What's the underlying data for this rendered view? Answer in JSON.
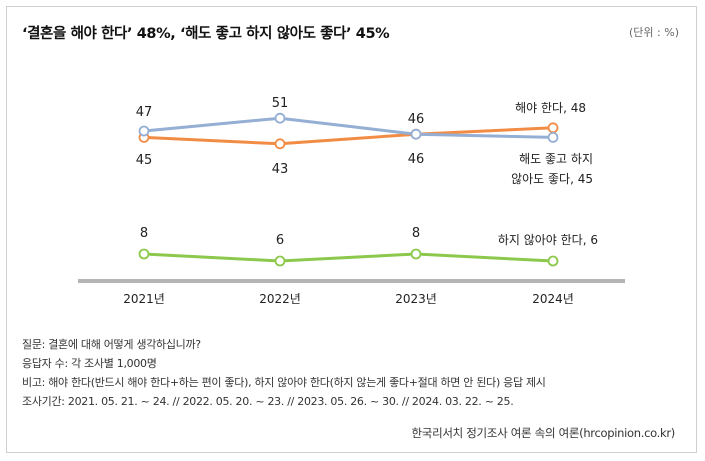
{
  "header": {
    "title": "‘결혼을 해야 한다’ 48%, ‘해도 좋고 하지 않아도 좋다’ 45%",
    "unit": "(단위 : %)"
  },
  "chart_data": {
    "type": "line",
    "x": [
      "2021년",
      "2022년",
      "2023년",
      "2024년"
    ],
    "ylim": [
      0,
      60
    ],
    "grid": false,
    "series": [
      {
        "name": "해야 한다, 48",
        "color": "#f28c45",
        "values": [
          45,
          43,
          46,
          48
        ]
      },
      {
        "name": "해도 좋고 하지 않아도 좋다, 45",
        "color": "#94aed4",
        "values": [
          47,
          51,
          46,
          45
        ]
      },
      {
        "name": "하지 않아야 한다, 6",
        "color": "#8cc84b",
        "values": [
          8,
          6,
          8,
          6
        ]
      }
    ]
  },
  "legend": {
    "label1": "해야 한다, 48",
    "label2_line1": "해도 좋고 하지",
    "label2_line2": "않아도 좋다, 45",
    "label3": "하지 않아야 한다, 6"
  },
  "notes": [
    "질문: 결혼에 대해 어떻게 생각하십니까?",
    "응답자 수: 각 조사별 1,000명",
    "비고: 해야 한다(반드시 해야 한다+하는 편이 좋다), 하지 않아야 한다(하지 않는게 좋다+절대 하면 안 된다) 응답 제시",
    "조사기간: 2021. 05. 21. ~ 24.  // 2022. 05. 20. ~ 23.  // 2023. 05. 26. ~ 30. // 2024. 03. 22. ~ 25."
  ],
  "source": "한국리서치 정기조사 여론 속의 여론(hrcopinion.co.kr)"
}
